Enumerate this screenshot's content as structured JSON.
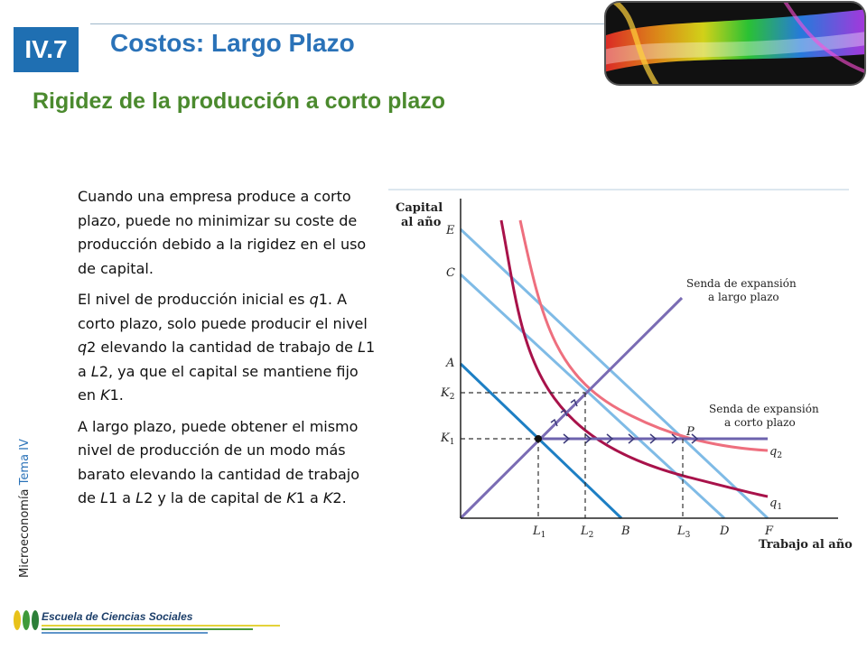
{
  "header": {
    "badge": "IV.7",
    "title": "Costos: Largo Plazo",
    "subtitle": "Rigidez de la producción a corto plazo"
  },
  "sidebar": {
    "course": "Microeconomía",
    "topic": "Tema IV"
  },
  "body": {
    "p1": "Cuando una empresa produce a corto plazo, puede no minimizar su coste de producción debido a la rigidez en el uso de capital.",
    "p2_a": "El nivel de producción inicial es ",
    "p2_q1": "q",
    "p2_b": "1. A corto plazo, solo puede producir el nivel ",
    "p2_q2": "q",
    "p2_c": "2 elevando la cantidad de trabajo de ",
    "p2_L1": "L",
    "p2_d": "1 a ",
    "p2_L2": "L",
    "p2_e": "2, ya que el capital se mantiene fijo en ",
    "p2_K1": "K",
    "p2_f": "1.",
    "p3_a": "A largo plazo, puede obtener el mismo nivel de producción de un modo más barato elevando la cantidad de trabajo de ",
    "p3_L1": "L",
    "p3_b": "1 a ",
    "p3_L2": "L",
    "p3_c": "2 y la de capital de ",
    "p3_K1": "K",
    "p3_d": "1 a ",
    "p3_K2": "K",
    "p3_e": "2."
  },
  "diagram": {
    "y_axis_title_1": "Capital",
    "y_axis_title_2": "al año",
    "x_axis_title": "Trabajo al año",
    "y_labels": {
      "E": "E",
      "C": "C",
      "A": "A",
      "K2": "K",
      "K2_sub": "2",
      "K1": "K",
      "K1_sub": "1"
    },
    "x_labels": {
      "L1": "L",
      "L1_sub": "1",
      "L2": "L",
      "L2_sub": "2",
      "B": "B",
      "L3": "L",
      "L3_sub": "3",
      "D": "D",
      "F": "F"
    },
    "point_P": "P",
    "q1": "q",
    "q1_sub": "1",
    "q2": "q",
    "q2_sub": "2",
    "lr_path_1": "Senda de expansión",
    "lr_path_2": "a largo plazo",
    "sr_path_1": "Senda de expansión",
    "sr_path_2": "a corto plazo",
    "colors": {
      "isocost": "#7fbbe6",
      "isocost_dark": "#1d7fc4",
      "isoquant_q1": "#a8124a",
      "isoquant_q2": "#ee6f7e",
      "lr_path": "#7a6cb4",
      "sr_path": "#6d62ad"
    }
  },
  "footer": {
    "school": "Escuela de Ciencias Sociales"
  }
}
